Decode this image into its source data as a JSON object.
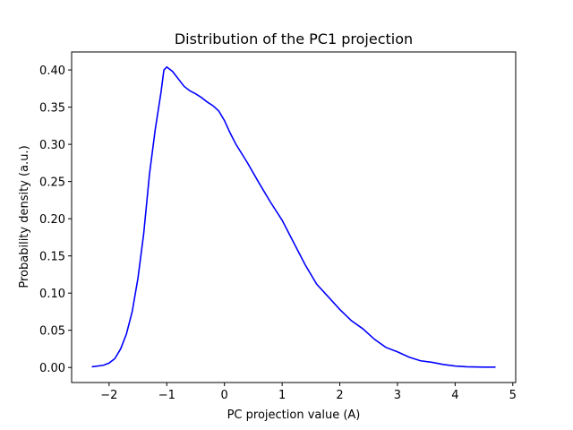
{
  "chart_data": {
    "type": "line",
    "title": "Distribution of the PC1 projection",
    "xlabel": "PC projection value (A)",
    "ylabel": "Probability density (a.u.)",
    "x": [
      -2.3,
      -2.1,
      -2.0,
      -1.9,
      -1.8,
      -1.7,
      -1.6,
      -1.5,
      -1.4,
      -1.3,
      -1.2,
      -1.1,
      -1.05,
      -1.0,
      -0.9,
      -0.8,
      -0.7,
      -0.6,
      -0.5,
      -0.4,
      -0.3,
      -0.2,
      -0.1,
      0.0,
      0.1,
      0.2,
      0.4,
      0.6,
      0.8,
      1.0,
      1.2,
      1.4,
      1.6,
      1.8,
      2.0,
      2.2,
      2.4,
      2.6,
      2.8,
      3.0,
      3.2,
      3.4,
      3.6,
      3.8,
      4.0,
      4.2,
      4.5,
      4.7
    ],
    "values": [
      0.001,
      0.003,
      0.006,
      0.012,
      0.025,
      0.045,
      0.075,
      0.12,
      0.18,
      0.26,
      0.32,
      0.37,
      0.4,
      0.404,
      0.398,
      0.388,
      0.378,
      0.372,
      0.368,
      0.363,
      0.357,
      0.352,
      0.345,
      0.332,
      0.315,
      0.3,
      0.275,
      0.248,
      0.222,
      0.198,
      0.168,
      0.138,
      0.112,
      0.095,
      0.078,
      0.063,
      0.052,
      0.038,
      0.027,
      0.021,
      0.014,
      0.009,
      0.007,
      0.004,
      0.002,
      0.001,
      0.0005,
      0.0005
    ],
    "color": "#0000ff",
    "xlim": [
      -2.65,
      5.05
    ],
    "ylim": [
      -0.0202,
      0.4242
    ],
    "xticks": [
      {
        "value": -2,
        "label": "−2"
      },
      {
        "value": -1,
        "label": "−1"
      },
      0,
      1,
      2,
      3,
      4,
      5
    ],
    "yticks": [
      {
        "value": 0,
        "label": "0.00"
      },
      {
        "value": 0.05,
        "label": "0.05"
      },
      {
        "value": 0.1,
        "label": "0.10"
      },
      {
        "value": 0.15,
        "label": "0.15"
      },
      {
        "value": 0.2,
        "label": "0.20"
      },
      {
        "value": 0.25,
        "label": "0.25"
      },
      {
        "value": 0.3,
        "label": "0.30"
      },
      {
        "value": 0.35,
        "label": "0.35"
      },
      {
        "value": 0.4,
        "label": "0.40"
      }
    ],
    "grid": false
  }
}
